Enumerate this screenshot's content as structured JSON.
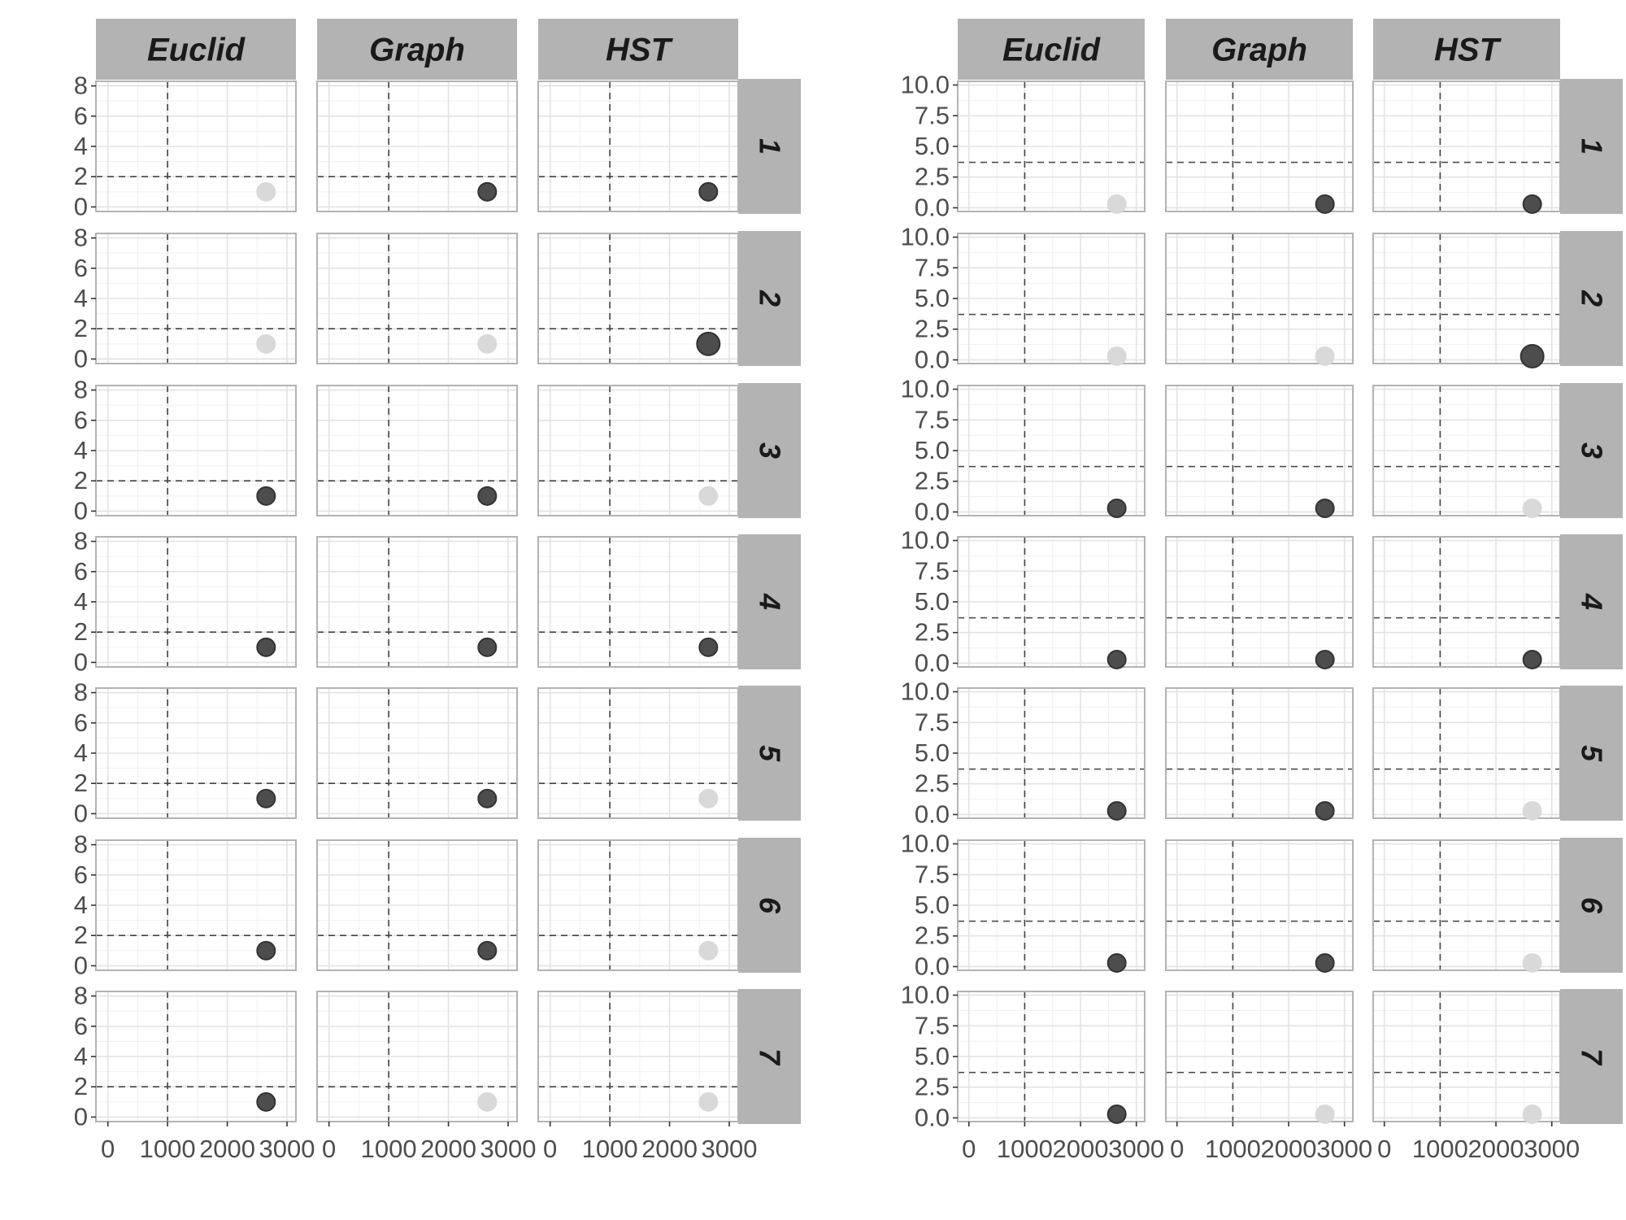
{
  "chart_data": [
    {
      "type": "scatter",
      "facet_columns": [
        "Euclid",
        "Graph",
        "HST"
      ],
      "facet_rows": [
        "1",
        "2",
        "3",
        "4",
        "5",
        "6",
        "7"
      ],
      "xlim": [
        -200,
        3150
      ],
      "ylim": [
        -0.3,
        8.3
      ],
      "x_ticks": [
        0,
        1000,
        2000,
        3000
      ],
      "x_tick_labels": [
        "0",
        "1000",
        "2000",
        "3000"
      ],
      "y_ticks": [
        0,
        2,
        4,
        6,
        8
      ],
      "y_tick_labels": [
        "0",
        "2",
        "4",
        "6",
        "8"
      ],
      "vline": 1000,
      "hline": 2,
      "grid": true,
      "point_colors": {
        "highlight": "#4d4d4d",
        "muted": "#d9d9d9",
        "edge": "#333333"
      },
      "points": [
        {
          "row": "1",
          "col": "Euclid",
          "x": 2650,
          "y": 1,
          "highlight": false,
          "size": "normal"
        },
        {
          "row": "1",
          "col": "Graph",
          "x": 2650,
          "y": 1,
          "highlight": true,
          "size": "normal"
        },
        {
          "row": "1",
          "col": "HST",
          "x": 2650,
          "y": 1,
          "highlight": true,
          "size": "normal"
        },
        {
          "row": "2",
          "col": "Euclid",
          "x": 2650,
          "y": 1,
          "highlight": false,
          "size": "normal"
        },
        {
          "row": "2",
          "col": "Graph",
          "x": 2650,
          "y": 1,
          "highlight": false,
          "size": "normal"
        },
        {
          "row": "2",
          "col": "HST",
          "x": 2650,
          "y": 1,
          "highlight": true,
          "size": "large"
        },
        {
          "row": "3",
          "col": "Euclid",
          "x": 2650,
          "y": 1,
          "highlight": true,
          "size": "normal"
        },
        {
          "row": "3",
          "col": "Graph",
          "x": 2650,
          "y": 1,
          "highlight": true,
          "size": "normal"
        },
        {
          "row": "3",
          "col": "HST",
          "x": 2650,
          "y": 1,
          "highlight": false,
          "size": "normal"
        },
        {
          "row": "4",
          "col": "Euclid",
          "x": 2650,
          "y": 1,
          "highlight": true,
          "size": "normal"
        },
        {
          "row": "4",
          "col": "Graph",
          "x": 2650,
          "y": 1,
          "highlight": true,
          "size": "normal"
        },
        {
          "row": "4",
          "col": "HST",
          "x": 2650,
          "y": 1,
          "highlight": true,
          "size": "normal"
        },
        {
          "row": "5",
          "col": "Euclid",
          "x": 2650,
          "y": 1,
          "highlight": true,
          "size": "normal"
        },
        {
          "row": "5",
          "col": "Graph",
          "x": 2650,
          "y": 1,
          "highlight": true,
          "size": "normal"
        },
        {
          "row": "5",
          "col": "HST",
          "x": 2650,
          "y": 1,
          "highlight": false,
          "size": "normal"
        },
        {
          "row": "6",
          "col": "Euclid",
          "x": 2650,
          "y": 1,
          "highlight": true,
          "size": "normal"
        },
        {
          "row": "6",
          "col": "Graph",
          "x": 2650,
          "y": 1,
          "highlight": true,
          "size": "normal"
        },
        {
          "row": "6",
          "col": "HST",
          "x": 2650,
          "y": 1,
          "highlight": false,
          "size": "normal"
        },
        {
          "row": "7",
          "col": "Euclid",
          "x": 2650,
          "y": 1,
          "highlight": true,
          "size": "normal"
        },
        {
          "row": "7",
          "col": "Graph",
          "x": 2650,
          "y": 1,
          "highlight": false,
          "size": "normal"
        },
        {
          "row": "7",
          "col": "HST",
          "x": 2650,
          "y": 1,
          "highlight": false,
          "size": "normal"
        }
      ]
    },
    {
      "type": "scatter",
      "facet_columns": [
        "Euclid",
        "Graph",
        "HST"
      ],
      "facet_rows": [
        "1",
        "2",
        "3",
        "4",
        "5",
        "6",
        "7"
      ],
      "xlim": [
        -200,
        3150
      ],
      "ylim": [
        -0.3,
        10.3
      ],
      "x_ticks": [
        0,
        1000,
        2000,
        3000
      ],
      "x_tick_labels": [
        "0",
        "1000",
        "2000",
        "3000"
      ],
      "y_ticks": [
        0,
        2.5,
        5,
        7.5,
        10
      ],
      "y_tick_labels": [
        "0.0",
        "2.5",
        "5.0",
        "7.5",
        "10.0"
      ],
      "vline": 1000,
      "hline": 3.7,
      "grid": true,
      "point_colors": {
        "highlight": "#4d4d4d",
        "muted": "#d9d9d9",
        "edge": "#333333"
      },
      "points": [
        {
          "row": "1",
          "col": "Euclid",
          "x": 2650,
          "y": 0.3,
          "highlight": false,
          "size": "normal"
        },
        {
          "row": "1",
          "col": "Graph",
          "x": 2650,
          "y": 0.3,
          "highlight": true,
          "size": "normal"
        },
        {
          "row": "1",
          "col": "HST",
          "x": 2650,
          "y": 0.3,
          "highlight": true,
          "size": "normal"
        },
        {
          "row": "2",
          "col": "Euclid",
          "x": 2650,
          "y": 0.3,
          "highlight": false,
          "size": "normal"
        },
        {
          "row": "2",
          "col": "Graph",
          "x": 2650,
          "y": 0.3,
          "highlight": false,
          "size": "normal"
        },
        {
          "row": "2",
          "col": "HST",
          "x": 2650,
          "y": 0.3,
          "highlight": true,
          "size": "large"
        },
        {
          "row": "3",
          "col": "Euclid",
          "x": 2650,
          "y": 0.3,
          "highlight": true,
          "size": "normal"
        },
        {
          "row": "3",
          "col": "Graph",
          "x": 2650,
          "y": 0.3,
          "highlight": true,
          "size": "normal"
        },
        {
          "row": "3",
          "col": "HST",
          "x": 2650,
          "y": 0.3,
          "highlight": false,
          "size": "normal"
        },
        {
          "row": "4",
          "col": "Euclid",
          "x": 2650,
          "y": 0.3,
          "highlight": true,
          "size": "normal"
        },
        {
          "row": "4",
          "col": "Graph",
          "x": 2650,
          "y": 0.3,
          "highlight": true,
          "size": "normal"
        },
        {
          "row": "4",
          "col": "HST",
          "x": 2650,
          "y": 0.3,
          "highlight": true,
          "size": "normal"
        },
        {
          "row": "5",
          "col": "Euclid",
          "x": 2650,
          "y": 0.3,
          "highlight": true,
          "size": "normal"
        },
        {
          "row": "5",
          "col": "Graph",
          "x": 2650,
          "y": 0.3,
          "highlight": true,
          "size": "normal"
        },
        {
          "row": "5",
          "col": "HST",
          "x": 2650,
          "y": 0.3,
          "highlight": false,
          "size": "normal"
        },
        {
          "row": "6",
          "col": "Euclid",
          "x": 2650,
          "y": 0.3,
          "highlight": true,
          "size": "normal"
        },
        {
          "row": "6",
          "col": "Graph",
          "x": 2650,
          "y": 0.3,
          "highlight": true,
          "size": "normal"
        },
        {
          "row": "6",
          "col": "HST",
          "x": 2650,
          "y": 0.3,
          "highlight": false,
          "size": "normal"
        },
        {
          "row": "7",
          "col": "Euclid",
          "x": 2650,
          "y": 0.3,
          "highlight": true,
          "size": "normal"
        },
        {
          "row": "7",
          "col": "Graph",
          "x": 2650,
          "y": 0.3,
          "highlight": false,
          "size": "normal"
        },
        {
          "row": "7",
          "col": "HST",
          "x": 2650,
          "y": 0.3,
          "highlight": false,
          "size": "normal"
        }
      ]
    }
  ]
}
